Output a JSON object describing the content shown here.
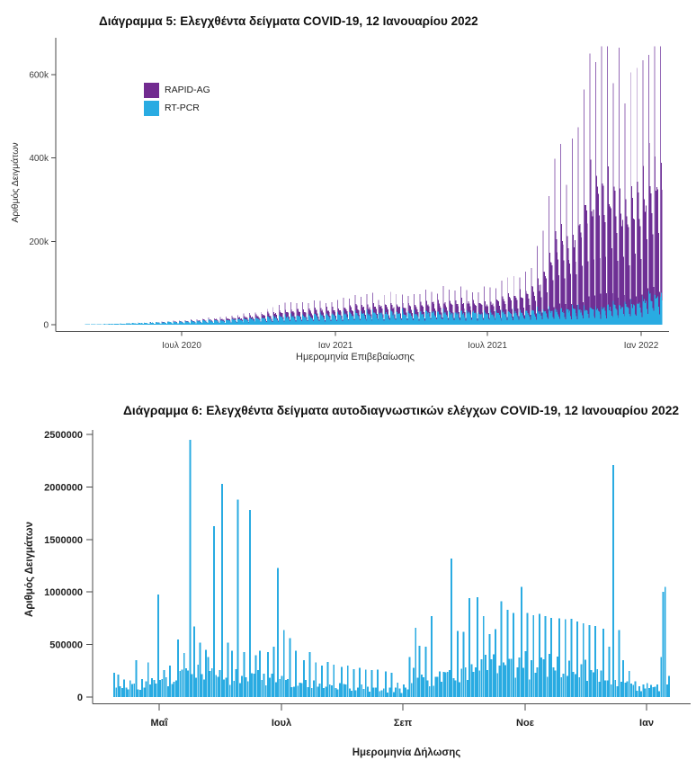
{
  "page": {
    "background": "#ffffff"
  },
  "chart_data": [
    {
      "type": "bar",
      "stacked": true,
      "title": "Διάγραμμα 5: Ελεγχθέντα δείγματα COVID-19, 12 Ιανουαρίου 2022",
      "xlabel": "Ημερομηνία Επιβεβαίωσης",
      "ylabel": "Αριθμός Δειγμάτων",
      "legend": [
        {
          "label": "RAPID-AG",
          "color": "#722b90"
        },
        {
          "label": "RT-PCR",
          "color": "#29abe2"
        }
      ],
      "colors": {
        "rapid_body": "#6e2f94",
        "rapid_peak": "#9469b6",
        "rtpcr": "#29abe2"
      },
      "x_tick_labels": [
        "Ιουλ 2020",
        "Ιαν 2021",
        "Ιουλ 2021",
        "Ιαν 2022"
      ],
      "y_tick_labels": [
        "0",
        "200k",
        "400k",
        "600k"
      ],
      "y_tick_values": [
        0,
        200000,
        400000,
        600000
      ],
      "ylim": [
        0,
        680000
      ],
      "x_span_note": "daily bars, ~Mar 2020 to mid Jan 2022; weekly cycle with weekday peaks and weekend dips; envelopes give estimated weekly-peak samples/day at image x-position",
      "series": [
        {
          "name": "RAPID-AG",
          "weekly_peak_envelope": [
            [
              95,
              0
            ],
            [
              150,
              400
            ],
            [
              202,
              2000
            ],
            [
              240,
              5000
            ],
            [
              280,
              12000
            ],
            [
              320,
              26000
            ],
            [
              350,
              30000
            ],
            [
              373,
              27000
            ],
            [
              400,
              36000
            ],
            [
              430,
              36000
            ],
            [
              460,
              42000
            ],
            [
              490,
              48000
            ],
            [
              515,
              52000
            ],
            [
              542,
              50000
            ],
            [
              560,
              70000
            ],
            [
              575,
              85000
            ],
            [
              590,
              110000
            ],
            [
              600,
              150000
            ],
            [
              606,
              200000
            ],
            [
              612,
              300000
            ],
            [
              622,
              350000
            ],
            [
              632,
              340000
            ],
            [
              642,
              360000
            ],
            [
              650,
              480000
            ],
            [
              656,
              560000
            ],
            [
              662,
              580000
            ],
            [
              668,
              610000
            ],
            [
              674,
              590000
            ],
            [
              680,
              600000
            ],
            [
              686,
              570000
            ],
            [
              692,
              520000
            ],
            [
              698,
              450000
            ],
            [
              704,
              510000
            ],
            [
              710,
              540000
            ],
            [
              716,
              580000
            ],
            [
              722,
              600000
            ],
            [
              728,
              610000
            ],
            [
              733,
              630000
            ],
            [
              737,
              560000
            ]
          ],
          "weekly_profile": [
            1,
            0.55,
            0.46,
            0.42,
            0.38,
            0.26,
            0.1
          ]
        },
        {
          "name": "RT-PCR",
          "weekly_peak_envelope": [
            [
              95,
              800
            ],
            [
              130,
              2500
            ],
            [
              160,
              5000
            ],
            [
              202,
              9000
            ],
            [
              240,
              12000
            ],
            [
              280,
              17000
            ],
            [
              320,
              24000
            ],
            [
              373,
              28000
            ],
            [
              410,
              32000
            ],
            [
              450,
              34000
            ],
            [
              490,
              35000
            ],
            [
              520,
              34000
            ],
            [
              542,
              32000
            ],
            [
              570,
              35000
            ],
            [
              600,
              38000
            ],
            [
              630,
              42000
            ],
            [
              656,
              45000
            ],
            [
              680,
              50000
            ],
            [
              700,
              55000
            ],
            [
              715,
              62000
            ],
            [
              726,
              90000
            ],
            [
              733,
              85000
            ],
            [
              737,
              70000
            ]
          ],
          "weekly_profile": [
            1,
            0.88,
            0.82,
            0.78,
            0.72,
            0.5,
            0.33
          ]
        }
      ]
    },
    {
      "type": "bar",
      "stacked": false,
      "title": "Διάγραμμα 6: Ελεγχθέντα δείγματα αυτοδιαγνωστικών ελέγχων COVID-19, 12 Ιανουαρίου 2022",
      "xlabel": "Ημερομηνία Δήλωσης",
      "ylabel": "Αριθμός Δειγμάτων",
      "color": "#29abe2",
      "x_tick_labels": [
        "Μαΐ",
        "Ιουλ",
        "Σεπ",
        "Νοε",
        "Ιαν"
      ],
      "y_tick_labels": [
        "0",
        "500000",
        "1000000",
        "1500000",
        "2000000",
        "2500000"
      ],
      "y_tick_values": [
        0,
        500000,
        1000000,
        1500000,
        2000000,
        2500000
      ],
      "ylim": [
        0,
        2500000
      ],
      "x_span_note": "daily bars, mid Apr 2021 to mid Jan 2022; 'peaks' are estimated declared self-test spikes at image x-position, other days follow base envelope",
      "peaks": [
        [
          127,
          230000
        ],
        [
          131,
          215000
        ],
        [
          138,
          165000
        ],
        [
          145,
          160000
        ],
        [
          152,
          350000
        ],
        [
          158,
          170000
        ],
        [
          165,
          330000
        ],
        [
          169,
          180000
        ],
        [
          176,
          975000
        ],
        [
          183,
          255000
        ],
        [
          190,
          300000
        ],
        [
          197,
          550000
        ],
        [
          204,
          420000
        ],
        [
          211,
          2450000
        ],
        [
          215,
          670000
        ],
        [
          222,
          520000
        ],
        [
          229,
          450000
        ],
        [
          232,
          380000
        ],
        [
          239,
          1625000
        ],
        [
          246,
          2030000
        ],
        [
          253,
          520000
        ],
        [
          257,
          440000
        ],
        [
          264,
          1880000
        ],
        [
          271,
          430000
        ],
        [
          278,
          1780000
        ],
        [
          285,
          400000
        ],
        [
          290,
          440000
        ],
        [
          297,
          430000
        ],
        [
          304,
          480000
        ],
        [
          309,
          1230000
        ],
        [
          316,
          640000
        ],
        [
          323,
          560000
        ],
        [
          330,
          440000
        ],
        [
          337,
          350000
        ],
        [
          344,
          430000
        ],
        [
          351,
          330000
        ],
        [
          358,
          300000
        ],
        [
          365,
          335000
        ],
        [
          372,
          310000
        ],
        [
          379,
          285000
        ],
        [
          386,
          300000
        ],
        [
          393,
          265000
        ],
        [
          400,
          280000
        ],
        [
          407,
          260000
        ],
        [
          414,
          255000
        ],
        [
          421,
          260000
        ],
        [
          428,
          245000
        ],
        [
          435,
          230000
        ],
        [
          442,
          135000
        ],
        [
          449,
          120000
        ],
        [
          456,
          380000
        ],
        [
          460,
          280000
        ],
        [
          463,
          660000
        ],
        [
          467,
          490000
        ],
        [
          474,
          480000
        ],
        [
          481,
          770000
        ],
        [
          488,
          245000
        ],
        [
          495,
          235000
        ],
        [
          502,
          1320000
        ],
        [
          509,
          630000
        ],
        [
          516,
          620000
        ],
        [
          523,
          940000
        ],
        [
          530,
          950000
        ],
        [
          537,
          770000
        ],
        [
          544,
          600000
        ],
        [
          551,
          645000
        ],
        [
          558,
          910000
        ],
        [
          565,
          830000
        ],
        [
          572,
          800000
        ],
        [
          579,
          1050000
        ],
        [
          586,
          800000
        ],
        [
          593,
          780000
        ],
        [
          600,
          790000
        ],
        [
          607,
          770000
        ],
        [
          614,
          755000
        ],
        [
          621,
          750000
        ],
        [
          628,
          740000
        ],
        [
          635,
          745000
        ],
        [
          642,
          720000
        ],
        [
          649,
          700000
        ],
        [
          656,
          685000
        ],
        [
          663,
          675000
        ],
        [
          670,
          650000
        ],
        [
          677,
          480000
        ],
        [
          683,
          2210000
        ],
        [
          688,
          640000
        ],
        [
          693,
          350000
        ],
        [
          699,
          250000
        ],
        [
          737,
          1000000
        ],
        [
          740,
          1050000
        ],
        [
          744,
          200000
        ]
      ],
      "base_envelope": [
        [
          127,
          70000
        ],
        [
          176,
          130000
        ],
        [
          211,
          240000
        ],
        [
          250,
          210000
        ],
        [
          290,
          180000
        ],
        [
          309,
          150000
        ],
        [
          340,
          120000
        ],
        [
          380,
          95000
        ],
        [
          420,
          75000
        ],
        [
          449,
          55000
        ],
        [
          470,
          160000
        ],
        [
          502,
          200000
        ],
        [
          530,
          270000
        ],
        [
          560,
          300000
        ],
        [
          584,
          310000
        ],
        [
          620,
          280000
        ],
        [
          655,
          255000
        ],
        [
          677,
          215000
        ],
        [
          690,
          160000
        ],
        [
          700,
          115000
        ],
        [
          728,
          85000
        ],
        [
          733,
          90000
        ],
        [
          735,
          300000
        ],
        [
          744,
          180000
        ]
      ]
    }
  ]
}
